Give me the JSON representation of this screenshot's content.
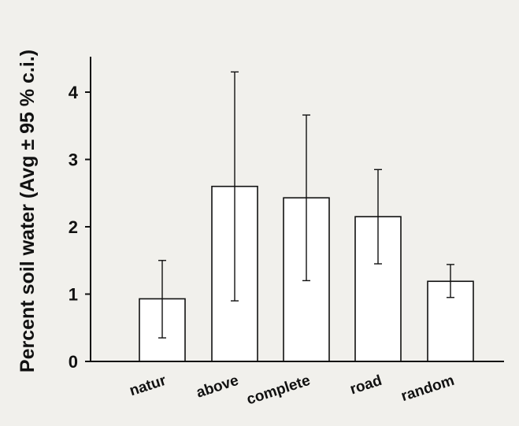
{
  "chart_data": {
    "type": "bar",
    "title": "",
    "xlabel": "",
    "ylabel": "Percent soil water (Avg ± 95 % c.i.)",
    "categories": [
      "natur",
      "above",
      "complete",
      "road",
      "random"
    ],
    "values": [
      0.93,
      2.6,
      2.43,
      2.15,
      1.19
    ],
    "error_low": [
      0.35,
      0.9,
      1.2,
      1.45,
      0.95
    ],
    "error_high": [
      1.5,
      4.3,
      3.66,
      2.85,
      1.44
    ],
    "ylim": [
      0,
      4.5
    ],
    "yticks": [
      "0",
      "1",
      "2",
      "3",
      "4"
    ],
    "grid": false,
    "legend": "none"
  }
}
